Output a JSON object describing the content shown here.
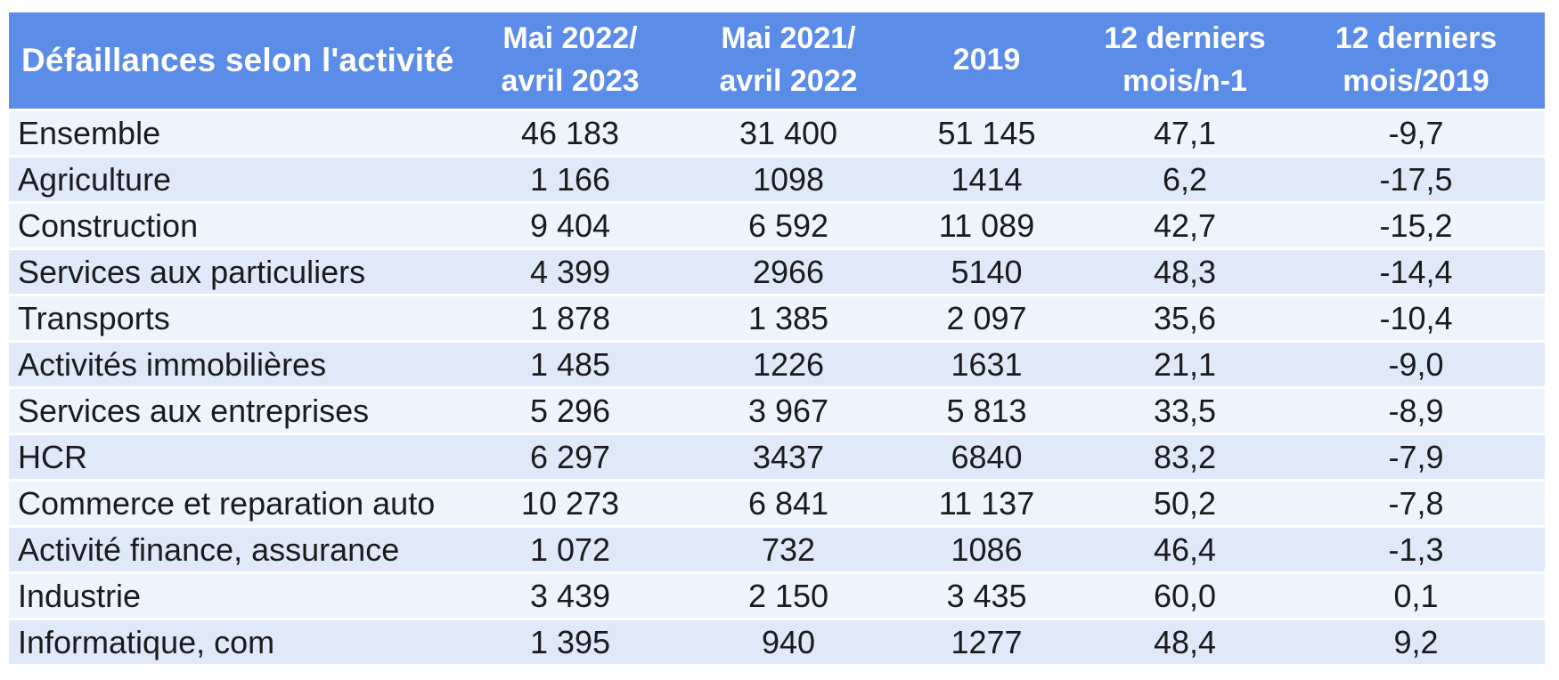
{
  "colors": {
    "header_background": "#5A8CE8",
    "header_text": "#ffffff",
    "row_light": "#EEF4FC",
    "row_dark": "#DFE9FA",
    "body_text": "#1b1b1d",
    "page_background": "#ffffff"
  },
  "table": {
    "headers": [
      "Défaillances selon l'activité",
      "Mai 2022/\navril 2023",
      "Mai 2021/\navril 2022",
      "2019",
      "12 derniers\nmois/n-1",
      "12 derniers\nmois/2019"
    ],
    "rows": [
      {
        "activity": "Ensemble",
        "values": [
          "46 183",
          "31 400",
          "51 145",
          "47,1",
          "-9,7"
        ]
      },
      {
        "activity": "Agriculture",
        "values": [
          "1 166",
          "1098",
          "1414",
          "6,2",
          "-17,5"
        ]
      },
      {
        "activity": "Construction",
        "values": [
          "9 404",
          "6 592",
          "11 089",
          "42,7",
          "-15,2"
        ]
      },
      {
        "activity": "Services aux particuliers",
        "values": [
          "4 399",
          "2966",
          "5140",
          "48,3",
          "-14,4"
        ]
      },
      {
        "activity": "Transports",
        "values": [
          "1 878",
          "1 385",
          "2 097",
          "35,6",
          "-10,4"
        ]
      },
      {
        "activity": "Activités immobilières",
        "values": [
          "1 485",
          "1226",
          "1631",
          "21,1",
          "-9,0"
        ]
      },
      {
        "activity": "Services aux entreprises",
        "values": [
          "5 296",
          "3 967",
          "5 813",
          "33,5",
          "-8,9"
        ]
      },
      {
        "activity": "HCR",
        "values": [
          "6 297",
          "3437",
          "6840",
          "83,2",
          "-7,9"
        ]
      },
      {
        "activity": "Commerce et reparation auto",
        "values": [
          "10 273",
          "6 841",
          "11 137",
          "50,2",
          "-7,8"
        ]
      },
      {
        "activity": "Activité finance, assurance",
        "values": [
          "1 072",
          "732",
          "1086",
          "46,4",
          "-1,3"
        ]
      },
      {
        "activity": "Industrie",
        "values": [
          "3 439",
          "2 150",
          "3 435",
          "60,0",
          "0,1"
        ]
      },
      {
        "activity": "Informatique, com",
        "values": [
          "1 395",
          "940",
          "1277",
          "48,4",
          "9,2"
        ]
      }
    ]
  },
  "chart_data": {
    "type": "table",
    "title": "Défaillances selon l'activité",
    "columns": [
      "Défaillances selon l'activité",
      "Mai 2022/ avril 2023",
      "Mai 2021/ avril 2022",
      "2019",
      "12 derniers mois/n-1",
      "12 derniers mois/2019"
    ],
    "rows": [
      [
        "Ensemble",
        46183,
        31400,
        51145,
        47.1,
        -9.7
      ],
      [
        "Agriculture",
        1166,
        1098,
        1414,
        6.2,
        -17.5
      ],
      [
        "Construction",
        9404,
        6592,
        11089,
        42.7,
        -15.2
      ],
      [
        "Services aux particuliers",
        4399,
        2966,
        5140,
        48.3,
        -14.4
      ],
      [
        "Transports",
        1878,
        1385,
        2097,
        35.6,
        -10.4
      ],
      [
        "Activités immobilières",
        1485,
        1226,
        1631,
        21.1,
        -9.0
      ],
      [
        "Services aux entreprises",
        5296,
        3967,
        5813,
        33.5,
        -8.9
      ],
      [
        "HCR",
        6297,
        3437,
        6840,
        83.2,
        -7.9
      ],
      [
        "Commerce et reparation auto",
        10273,
        6841,
        11137,
        50.2,
        -7.8
      ],
      [
        "Activité finance, assurance",
        1072,
        732,
        1086,
        46.4,
        -1.3
      ],
      [
        "Industrie",
        3439,
        2150,
        3435,
        60.0,
        0.1
      ],
      [
        "Informatique, com",
        1395,
        940,
        1277,
        48.4,
        9.2
      ]
    ]
  }
}
